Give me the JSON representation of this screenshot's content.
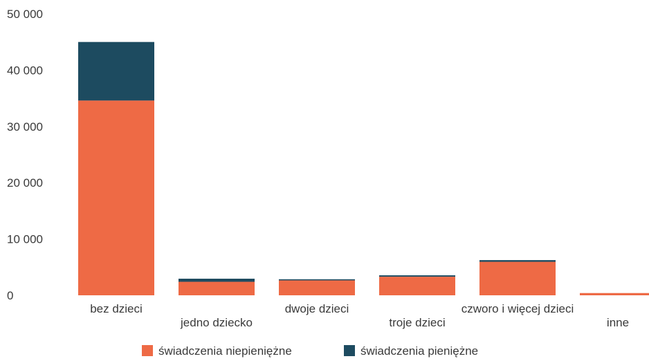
{
  "chart_data": {
    "type": "bar",
    "stacked": true,
    "title": "",
    "xlabel": "",
    "ylabel": "",
    "ylim": [
      0,
      50000
    ],
    "yticks": [
      0,
      10000,
      20000,
      30000,
      40000,
      50000
    ],
    "ytick_labels": [
      "0",
      "10 000",
      "20 000",
      "30 000",
      "40 000",
      "50 000"
    ],
    "grid": false,
    "legend_position": "bottom",
    "categories": [
      "bez dzieci",
      "jedno dziecko",
      "dwoje dzieci",
      "troje dzieci",
      "czworo i więcej dzieci",
      "inne"
    ],
    "series": [
      {
        "name": "świadczenia niepieniężne",
        "color": "#ee6a45",
        "values": [
          34600,
          2400,
          2650,
          3300,
          5950,
          400
        ]
      },
      {
        "name": "świadczenia pieniężne",
        "color": "#1d4b60",
        "values": [
          10400,
          550,
          200,
          250,
          300,
          0
        ]
      }
    ]
  }
}
